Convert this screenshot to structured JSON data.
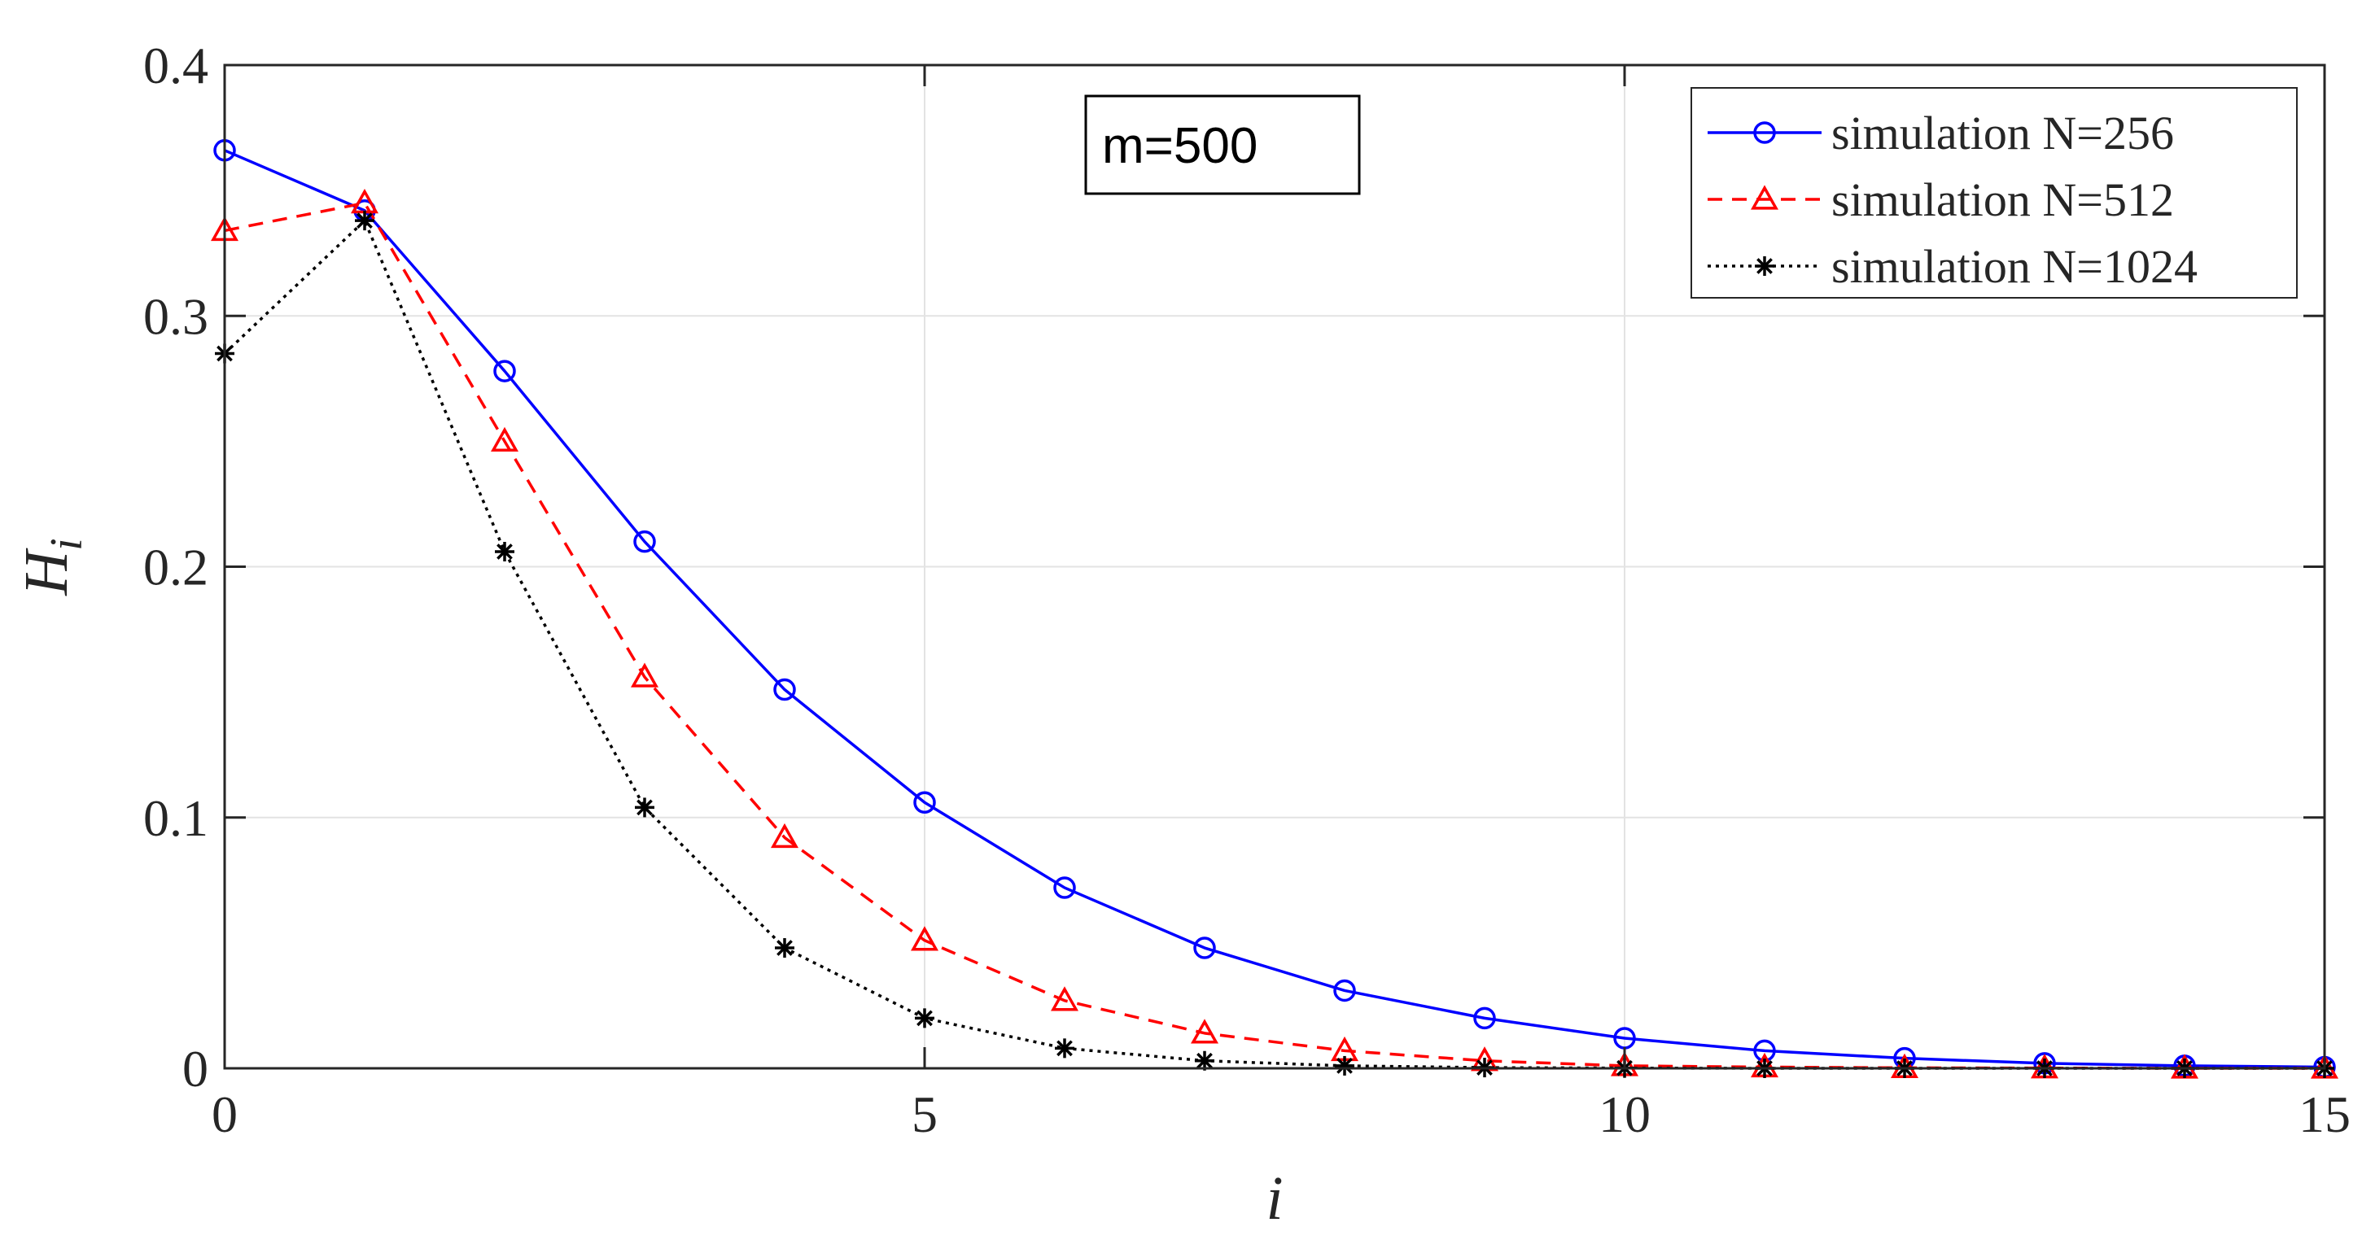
{
  "chart_data": {
    "type": "line",
    "title": "",
    "xlabel": "i",
    "ylabel_main": "H",
    "ylabel_sub": "i",
    "xlim": [
      0,
      15
    ],
    "ylim": [
      0,
      0.4
    ],
    "x_ticks": [
      0,
      5,
      10,
      15
    ],
    "x_tick_labels": [
      "0",
      "5",
      "10",
      "15"
    ],
    "y_ticks": [
      0,
      0.1,
      0.2,
      0.3,
      0.4
    ],
    "y_tick_labels": [
      "0",
      "0.1",
      "0.2",
      "0.3",
      "0.4"
    ],
    "grid": true,
    "legend_position": "top-right",
    "annotation": "m=500",
    "x": [
      0,
      1,
      2,
      3,
      4,
      5,
      6,
      7,
      8,
      9,
      10,
      11,
      12,
      13,
      14,
      15
    ],
    "series": [
      {
        "name": "simulation N=256",
        "color": "#0000ff",
        "line_style": "solid",
        "marker": "circle",
        "values": [
          0.366,
          0.342,
          0.278,
          0.21,
          0.151,
          0.106,
          0.072,
          0.048,
          0.031,
          0.02,
          0.012,
          0.007,
          0.004,
          0.002,
          0.001,
          0.0005
        ]
      },
      {
        "name": "simulation N=512",
        "color": "#ff0000",
        "line_style": "dashed",
        "marker": "triangle",
        "values": [
          0.334,
          0.345,
          0.25,
          0.156,
          0.092,
          0.051,
          0.027,
          0.014,
          0.007,
          0.003,
          0.001,
          0.0005,
          0.0002,
          0.0001,
          0.0,
          0.0
        ]
      },
      {
        "name": "simulation N=1024",
        "color": "#000000",
        "line_style": "dotted",
        "marker": "asterisk",
        "values": [
          0.285,
          0.338,
          0.206,
          0.104,
          0.048,
          0.02,
          0.008,
          0.003,
          0.001,
          0.0003,
          0.0001,
          0.0,
          0.0,
          0.0,
          0.0,
          0.0
        ]
      }
    ]
  }
}
